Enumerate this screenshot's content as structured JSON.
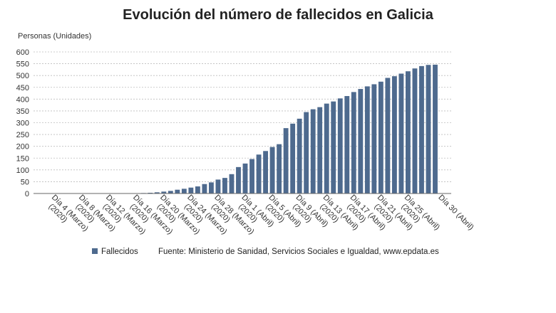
{
  "chart_data": {
    "type": "bar",
    "title": "Evolución del número de fallecidos en Galicia",
    "ylabel": "Personas (Unidades)",
    "ylim": [
      0,
      600
    ],
    "yticks": [
      0,
      50,
      100,
      150,
      200,
      250,
      300,
      350,
      400,
      450,
      500,
      550,
      600
    ],
    "grid": true,
    "legend_position": "bottom",
    "source": "Fuente: Ministerio de Sanidad, Servicios Sociales e Igualdad, www.epdata.es",
    "color": "#4e6a8e",
    "x_labels": [
      {
        "index": 0,
        "line1": "Día 4 (Marzo)",
        "line2": "(2020)"
      },
      {
        "index": 4,
        "line1": "Día 8 (Marzo)",
        "line2": "(2020)"
      },
      {
        "index": 8,
        "line1": "Día 12 (Marzo)",
        "line2": "(2020)"
      },
      {
        "index": 12,
        "line1": "Día 16 (Marzo)",
        "line2": "(2020)"
      },
      {
        "index": 16,
        "line1": "Día 20 (Marzo)",
        "line2": "(2020)"
      },
      {
        "index": 20,
        "line1": "Día 24 (Marzo)",
        "line2": "(2020)"
      },
      {
        "index": 24,
        "line1": "Día 28 (Marzo)",
        "line2": "(2020)"
      },
      {
        "index": 28,
        "line1": "Día 1 (Abril)",
        "line2": "(2020)"
      },
      {
        "index": 32,
        "line1": "Día 5 (Abril)",
        "line2": "(2020)"
      },
      {
        "index": 36,
        "line1": "Día 9 (Abril)",
        "line2": "(2020)"
      },
      {
        "index": 40,
        "line1": "Día 13 (Abril)",
        "line2": "(2020)"
      },
      {
        "index": 44,
        "line1": "Día 17 (Abril)",
        "line2": "(2020)"
      },
      {
        "index": 48,
        "line1": "Día 21 (Abril)",
        "line2": "(2020)"
      },
      {
        "index": 52,
        "line1": "Día 25 (Abril)",
        "line2": "(2020)"
      },
      {
        "index": 57,
        "line1": "Día 30 (Abril)",
        "line2": ""
      }
    ],
    "series": [
      {
        "name": "Fallecidos",
        "values": [
          0,
          0,
          0,
          0,
          0,
          0,
          0,
          0,
          0,
          0,
          0,
          0,
          0,
          1,
          2,
          3,
          5,
          8,
          11,
          16,
          20,
          25,
          30,
          40,
          47,
          59,
          66,
          82,
          112,
          127,
          146,
          165,
          180,
          197,
          209,
          277,
          296,
          317,
          345,
          357,
          366,
          381,
          390,
          403,
          413,
          430,
          443,
          454,
          463,
          474,
          490,
          497,
          508,
          518,
          530,
          540,
          545,
          546
        ]
      }
    ]
  }
}
